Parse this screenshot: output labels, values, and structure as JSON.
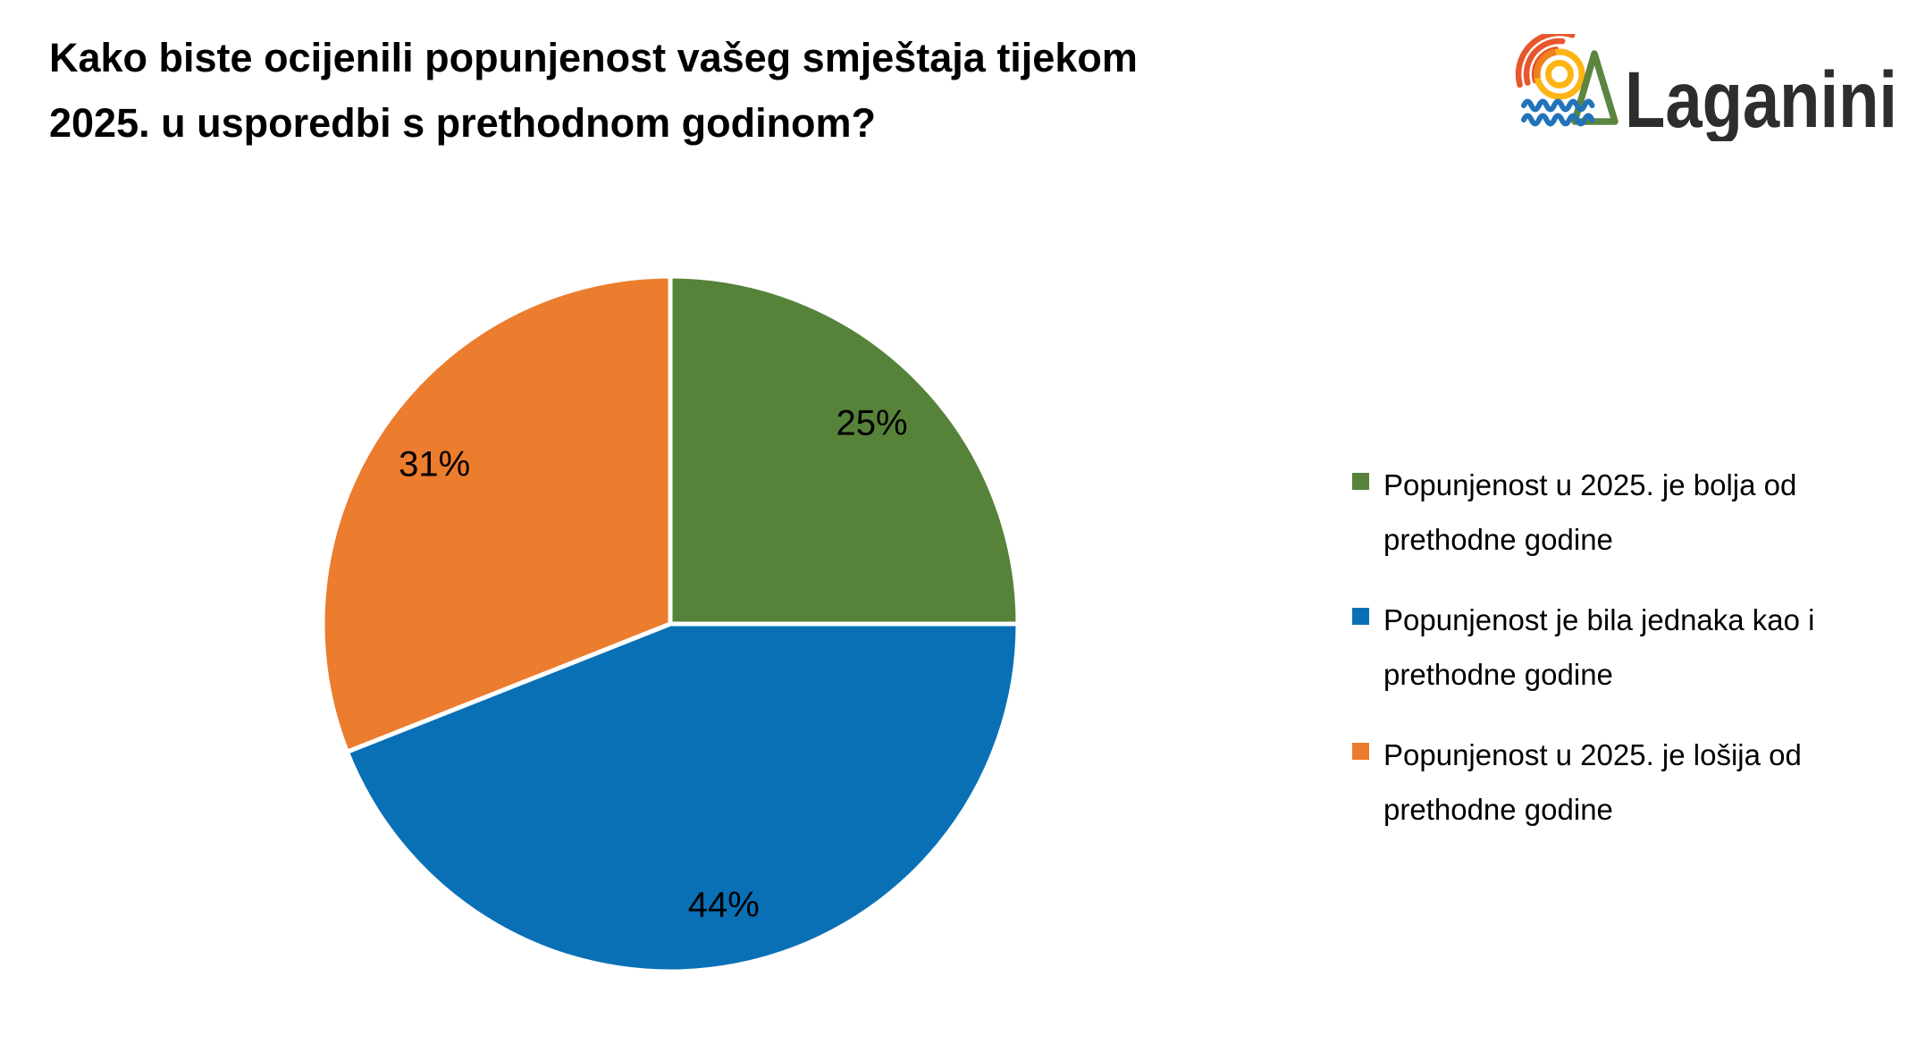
{
  "header": {
    "title": "Kako biste ocijenili popunjenost vašeg smještaja tijekom 2025. u usporedbi s prethodnom godinom?",
    "title_lines": [
      "Kako biste ocijenili popunjenost vašeg smještaja tijekom",
      "2025. u usporedbi s prethodnom godinom?"
    ]
  },
  "logo": {
    "wordmark": "Laganini",
    "colors": {
      "rays": "#e8562d",
      "sun_yellow": "#fdb515",
      "sun_orange": "#f0811f",
      "tree_green": "#5b8540",
      "waves_blue": "#2273b9",
      "text": "#2c2d2e"
    }
  },
  "chart_data": {
    "type": "pie",
    "title": "Kako biste ocijenili popunjenost vašeg smještaja tijekom 2025. u usporedbi s prethodnom godinom?",
    "categories": [
      "Popunjenost u 2025. je bolja od prethodne godine",
      "Popunjenost je bila jednaka kao i prethodne godine",
      "Popunjenost u 2025. je lošija od prethodne godine"
    ],
    "values": [
      25,
      44,
      31
    ],
    "unit": "%",
    "data_labels": [
      "25%",
      "44%",
      "31%"
    ],
    "colors": [
      "#56823a",
      "#0a70b6",
      "#ec7c2e"
    ],
    "start_angle_deg": 0,
    "direction": "clockwise",
    "slice_border_color": "#ffffff",
    "legend_position": "right"
  },
  "legend": {
    "items": [
      {
        "label": "Popunjenost u 2025. je bolja od prethodne godine",
        "lines": [
          "Popunjenost u 2025. je bolja od",
          "prethodne godine"
        ]
      },
      {
        "label": "Popunjenost je bila jednaka kao i prethodne godine",
        "lines": [
          "Popunjenost je bila jednaka kao i",
          "prethodne godine"
        ]
      },
      {
        "label": "Popunjenost u 2025. je lošija od prethodne godine",
        "lines": [
          "Popunjenost u 2025. je lošija od",
          "prethodne godine"
        ]
      }
    ]
  }
}
